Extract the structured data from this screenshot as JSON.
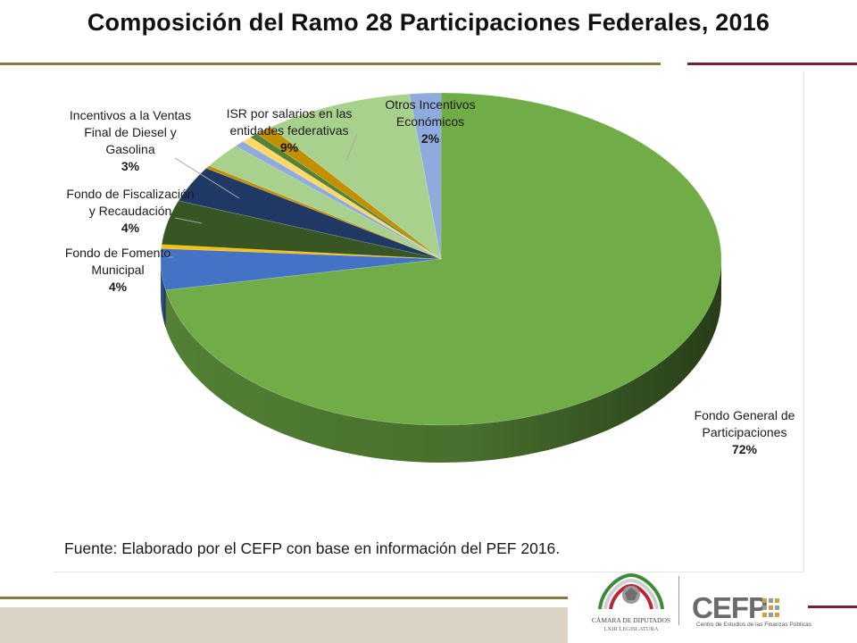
{
  "page": {
    "title": "Composición del Ramo 28 Participaciones Federales, 2016",
    "source": "Fuente: Elaborado por el CEFP con base en información del PEF 2016."
  },
  "footer": {
    "camara_line1": "CÁMARA DE DIPUTADOS",
    "camara_line2": "LXIII LEGISLATURA",
    "cefp_logo": "CEFP",
    "cefp_sub": "Centro de Estudios de las Finanzas Públicas"
  },
  "colors": {
    "rule_olive": "#847a4a",
    "rule_maroon": "#6d2434",
    "footer_strip": "#d9d4c4"
  },
  "labels": {
    "fondo_general": {
      "name1": "Fondo General de",
      "name2": "Participaciones",
      "pct": "72%"
    },
    "fomento": {
      "name1": "Fondo de Fomento",
      "name2": "Municipal",
      "pct": "4%"
    },
    "fiscalizacion": {
      "name1": "Fondo de Fiscalización",
      "name2": "y Recaudación",
      "pct": "4%"
    },
    "incentivos_ventas": {
      "name1": "Incentivos a la Ventas",
      "name2": "Final de Diesel y",
      "name3": "Gasolina",
      "pct": "3%"
    },
    "isr": {
      "name1": "ISR por salarios en las",
      "name2": "entidades federativas",
      "pct": "9%"
    },
    "otros": {
      "name1": "Otros Incentivos",
      "name2": "Económicos",
      "pct": "2%"
    }
  },
  "chart_data": {
    "type": "pie",
    "style": "3d",
    "title": "Composición del Ramo 28 Participaciones Federales, 2016",
    "start": "12 o'clock",
    "direction": "clockwise",
    "slices": [
      {
        "label": "Fondo General de Participaciones",
        "value": 72.0,
        "label_text": "72%",
        "color": "#70ad47"
      },
      {
        "label": "Fondo de Fomento Municipal",
        "value": 4.0,
        "label_text": "4%",
        "color": "#4472c4"
      },
      {
        "label": "",
        "value": 0.4,
        "color": "#ffc000"
      },
      {
        "label": "",
        "value": 4.3,
        "color": "#375623"
      },
      {
        "label": "Fondo de Fiscalización y Recaudación",
        "value": 3.5,
        "label_text": "4%",
        "color": "#1f3864"
      },
      {
        "label": "",
        "value": 0.3,
        "color": "#bf8f00"
      },
      {
        "label": "Incentivos a la Ventas Final de Diesel y Gasolina",
        "value": 2.4,
        "label_text": "3%",
        "color": "#a9d18e"
      },
      {
        "label": "",
        "value": 0.6,
        "color": "#8faadc"
      },
      {
        "label": "",
        "value": 0.6,
        "color": "#ffd966"
      },
      {
        "label": "",
        "value": 0.5,
        "color": "#548235"
      },
      {
        "label": "",
        "value": 1.0,
        "color": "#c09000"
      },
      {
        "label": "ISR por salarios en las entidades federativas",
        "value": 8.6,
        "label_text": "9%",
        "color": "#a9d18e"
      },
      {
        "label": "Otros Incentivos Económicos",
        "value": 1.8,
        "label_text": "2%",
        "color": "#8faadc"
      }
    ]
  }
}
